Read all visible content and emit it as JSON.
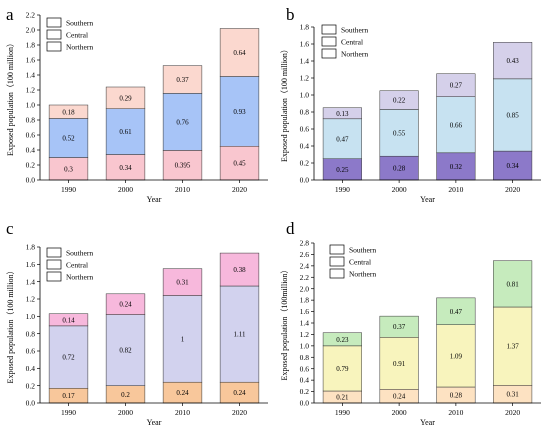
{
  "chart_data": [
    {
      "panel": "a",
      "type": "bar",
      "stacked": true,
      "categories": [
        "1990",
        "2000",
        "2010",
        "2020"
      ],
      "xlabel": "Year",
      "ylabel": "Exposed population（100 million）",
      "ylim": [
        0,
        2.2
      ],
      "yticks": [
        "0.0",
        "0.2",
        "0.4",
        "0.6",
        "0.8",
        "1.0",
        "1.2",
        "1.4",
        "1.6",
        "1.8",
        "2.0",
        "2.2"
      ],
      "series": [
        {
          "name": "Northern",
          "values": [
            0.3,
            0.34,
            0.395,
            0.45
          ],
          "labels": [
            "0.3",
            "0.34",
            "0.395",
            "0.45"
          ],
          "color": "#f9c6cf"
        },
        {
          "name": "Central",
          "values": [
            0.52,
            0.61,
            0.76,
            0.93
          ],
          "labels": [
            "0.52",
            "0.61",
            "0.76",
            "0.93"
          ],
          "color": "#a7c4f7"
        },
        {
          "name": "Southern",
          "values": [
            0.18,
            0.29,
            0.37,
            0.64
          ],
          "labels": [
            "0.18",
            "0.29",
            "0.37",
            "0.64"
          ],
          "color": "#fbd8cf"
        }
      ],
      "legend": "top-left"
    },
    {
      "panel": "b",
      "type": "bar",
      "stacked": true,
      "categories": [
        "1990",
        "2000",
        "2010",
        "2020"
      ],
      "xlabel": "Year",
      "ylabel": "Exposed population（100 million）",
      "ylim": [
        0,
        1.8
      ],
      "yticks": [
        "0.0",
        "0.2",
        "0.4",
        "0.6",
        "0.8",
        "1.0",
        "1.2",
        "1.4",
        "1.6",
        "1.8"
      ],
      "series": [
        {
          "name": "Northern",
          "values": [
            0.25,
            0.28,
            0.32,
            0.34
          ],
          "labels": [
            "0.25",
            "0.28",
            "0.32",
            "0.34"
          ],
          "color": "#8c79c9"
        },
        {
          "name": "Central",
          "values": [
            0.47,
            0.55,
            0.66,
            0.85
          ],
          "labels": [
            "0.47",
            "0.55",
            "0.66",
            "0.85"
          ],
          "color": "#c7e2f1"
        },
        {
          "name": "Southern",
          "values": [
            0.13,
            0.22,
            0.27,
            0.43
          ],
          "labels": [
            "0.13",
            "0.22",
            "0.27",
            "0.43"
          ],
          "color": "#d5d0ea"
        }
      ],
      "legend": "top-left"
    },
    {
      "panel": "c",
      "type": "bar",
      "stacked": true,
      "categories": [
        "1990",
        "2000",
        "2010",
        "2020"
      ],
      "xlabel": "Year",
      "ylabel": "Exposed population（100 million）",
      "ylim": [
        0,
        1.8
      ],
      "yticks": [
        "0.0",
        "0.2",
        "0.4",
        "0.6",
        "0.8",
        "1.0",
        "1.2",
        "1.4",
        "1.6",
        "1.8"
      ],
      "series": [
        {
          "name": "Northern",
          "values": [
            0.17,
            0.2,
            0.24,
            0.24
          ],
          "labels": [
            "0.17",
            "0.2",
            "0.24",
            "0.24"
          ],
          "color": "#f8c79b"
        },
        {
          "name": "Central",
          "values": [
            0.72,
            0.82,
            1.0,
            1.11
          ],
          "labels": [
            "0.72",
            "0.82",
            "1",
            "1.11"
          ],
          "color": "#d2d2ee"
        },
        {
          "name": "Southern",
          "values": [
            0.14,
            0.24,
            0.31,
            0.38
          ],
          "labels": [
            "0.14",
            "0.24",
            "0.31",
            "0.38"
          ],
          "color": "#f7b8dc"
        }
      ],
      "legend": "top-left"
    },
    {
      "panel": "d",
      "type": "bar",
      "stacked": true,
      "categories": [
        "1990",
        "2000",
        "2010",
        "2020"
      ],
      "xlabel": "Year",
      "ylabel": "Exposed population（100million）",
      "ylim": [
        0,
        2.8
      ],
      "yticks": [
        "0.0",
        "0.2",
        "0.4",
        "0.6",
        "0.8",
        "1.0",
        "1.2",
        "1.4",
        "1.6",
        "1.8",
        "2.0",
        "2.2",
        "2.4",
        "2.6",
        "2.8"
      ],
      "series": [
        {
          "name": "Northern",
          "values": [
            0.21,
            0.24,
            0.28,
            0.31
          ],
          "labels": [
            "0.21",
            "0.24",
            "0.28",
            "0.31"
          ],
          "color": "#fde2c2"
        },
        {
          "name": "Central",
          "values": [
            0.79,
            0.91,
            1.09,
            1.37
          ],
          "labels": [
            "0.79",
            "0.91",
            "1.09",
            "1.37"
          ],
          "color": "#f8f4bd"
        },
        {
          "name": "Southern",
          "values": [
            0.23,
            0.37,
            0.47,
            0.81
          ],
          "labels": [
            "0.23",
            "0.37",
            "0.47",
            "0.81"
          ],
          "color": "#c6ebbd"
        }
      ],
      "legend": "top-left"
    }
  ]
}
